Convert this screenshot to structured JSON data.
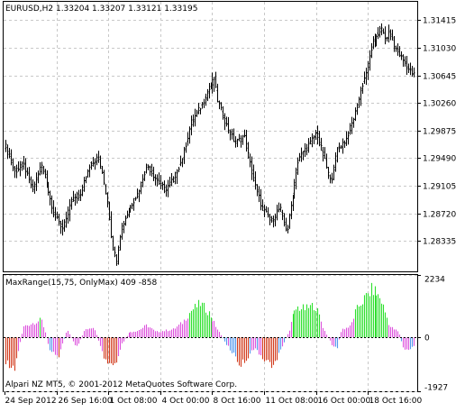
{
  "chart_data": [
    {
      "type": "bar",
      "name": "price",
      "title": "EURUSD,H2  1.33204 1.33207 1.33121 1.33195",
      "yticks": [
        "1.31415",
        "1.31030",
        "1.30645",
        "1.30260",
        "1.29875",
        "1.29490",
        "1.29105",
        "1.28720",
        "1.28335"
      ],
      "ylim": [
        1.2791,
        1.3167
      ],
      "xticks": [
        "24 Sep 2012",
        "26 Sep 16:00",
        "1 Oct 08:00",
        "4 Oct 00:00",
        "8 Oct 16:00",
        "11 Oct 08:00",
        "16 Oct 00:00",
        "18 Oct 16:00"
      ],
      "grid": true,
      "keypoints": [
        [
          0,
          1.2965
        ],
        [
          10,
          1.293
        ],
        [
          20,
          1.294
        ],
        [
          30,
          1.2905
        ],
        [
          40,
          1.294
        ],
        [
          45,
          1.292
        ],
        [
          55,
          1.287
        ],
        [
          65,
          1.285
        ],
        [
          75,
          1.289
        ],
        [
          85,
          1.29
        ],
        [
          95,
          1.294
        ],
        [
          105,
          1.295
        ],
        [
          115,
          1.289
        ],
        [
          120,
          1.283
        ],
        [
          125,
          1.2805
        ],
        [
          130,
          1.285
        ],
        [
          140,
          1.288
        ],
        [
          150,
          1.29
        ],
        [
          160,
          1.294
        ],
        [
          170,
          1.292
        ],
        [
          180,
          1.2905
        ],
        [
          190,
          1.292
        ],
        [
          200,
          1.295
        ],
        [
          210,
          1.3
        ],
        [
          220,
          1.302
        ],
        [
          230,
          1.3045
        ],
        [
          236,
          1.306
        ],
        [
          240,
          1.303
        ],
        [
          250,
          1.2995
        ],
        [
          260,
          1.297
        ],
        [
          270,
          1.298
        ],
        [
          280,
          1.292
        ],
        [
          290,
          1.288
        ],
        [
          300,
          1.286
        ],
        [
          310,
          1.288
        ],
        [
          318,
          1.2845
        ],
        [
          325,
          1.29
        ],
        [
          330,
          1.294
        ],
        [
          335,
          1.2955
        ],
        [
          345,
          1.297
        ],
        [
          352,
          1.2985
        ],
        [
          360,
          1.295
        ],
        [
          368,
          1.2915
        ],
        [
          375,
          1.296
        ],
        [
          385,
          1.2975
        ],
        [
          395,
          1.301
        ],
        [
          403,
          1.305
        ],
        [
          410,
          1.308
        ],
        [
          415,
          1.311
        ],
        [
          420,
          1.312
        ],
        [
          425,
          1.313
        ],
        [
          430,
          1.3115
        ],
        [
          435,
          1.3125
        ],
        [
          440,
          1.3105
        ],
        [
          445,
          1.3095
        ],
        [
          450,
          1.3085
        ],
        [
          455,
          1.3075
        ],
        [
          462,
          1.3065
        ]
      ]
    },
    {
      "type": "bar",
      "name": "indicator",
      "title": "MaxRange(15,75, OnlyMax) 409 -858",
      "yticks": [
        "2234",
        "0",
        "-1927"
      ],
      "ylim": [
        -1927,
        2234
      ],
      "colors": {
        "up": "#2ee02e",
        "down": "#d23c1e",
        "upper": "#dd55dd",
        "lower": "#5599ee",
        "neutral": "#dd55dd"
      },
      "keypoints": [
        [
          0,
          -900
        ],
        [
          10,
          -1100
        ],
        [
          20,
          400
        ],
        [
          40,
          650
        ],
        [
          50,
          -400
        ],
        [
          60,
          -700
        ],
        [
          70,
          300
        ],
        [
          80,
          -400
        ],
        [
          90,
          300
        ],
        [
          100,
          400
        ],
        [
          110,
          -700
        ],
        [
          115,
          -1000
        ],
        [
          120,
          -1000
        ],
        [
          125,
          -1100
        ],
        [
          130,
          -300
        ],
        [
          140,
          200
        ],
        [
          150,
          250
        ],
        [
          160,
          450
        ],
        [
          170,
          200
        ],
        [
          180,
          250
        ],
        [
          190,
          300
        ],
        [
          200,
          550
        ],
        [
          210,
          1000
        ],
        [
          220,
          1250
        ],
        [
          230,
          900
        ],
        [
          240,
          300
        ],
        [
          250,
          -250
        ],
        [
          260,
          -700
        ],
        [
          265,
          -1000
        ],
        [
          270,
          -900
        ],
        [
          280,
          -400
        ],
        [
          290,
          -700
        ],
        [
          300,
          -1000
        ],
        [
          305,
          -1000
        ],
        [
          310,
          -500
        ],
        [
          320,
          200
        ],
        [
          325,
          800
        ],
        [
          330,
          1100
        ],
        [
          340,
          1050
        ],
        [
          350,
          1200
        ],
        [
          355,
          800
        ],
        [
          360,
          300
        ],
        [
          370,
          -300
        ],
        [
          375,
          -400
        ],
        [
          380,
          300
        ],
        [
          390,
          400
        ],
        [
          395,
          900
        ],
        [
          400,
          1200
        ],
        [
          410,
          1600
        ],
        [
          415,
          1800
        ],
        [
          420,
          1600
        ],
        [
          425,
          1400
        ],
        [
          430,
          900
        ],
        [
          435,
          400
        ],
        [
          440,
          300
        ],
        [
          445,
          200
        ],
        [
          450,
          -400
        ],
        [
          455,
          -500
        ],
        [
          462,
          -300
        ]
      ]
    }
  ],
  "footer": {
    "copyright": "Alpari NZ MT5, © 2001-2012 MetaQuotes Software Corp."
  }
}
